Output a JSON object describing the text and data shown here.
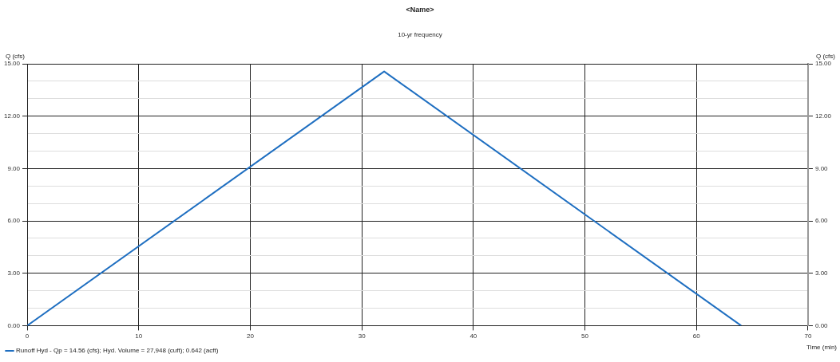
{
  "chart_data": {
    "type": "line",
    "title": "<Name>",
    "subtitle": "10-yr frequency",
    "xlabel": "Time (min)",
    "ylabel": "Q (cfs)",
    "y2label": "Q (cfs)",
    "x": [
      0,
      32,
      64
    ],
    "series": [
      {
        "name": "Runoff Hyd - Qp = 14.56 (cfs); Hyd. Volume = 27,948 (cuft); 0.642 (acft)",
        "color": "#1f6fc1",
        "values": [
          0,
          14.56,
          0
        ]
      }
    ],
    "xlim": [
      0,
      70
    ],
    "xticks": [
      0,
      10,
      20,
      30,
      40,
      50,
      60,
      70
    ],
    "ylim": [
      0,
      15
    ],
    "yticks": [
      {
        "value": 0,
        "label": "0.00"
      },
      {
        "value": 1,
        "label": null
      },
      {
        "value": 2,
        "label": null
      },
      {
        "value": 3,
        "label": "3.00"
      },
      {
        "value": 4,
        "label": null
      },
      {
        "value": 5,
        "label": null
      },
      {
        "value": 6,
        "label": "6.00"
      },
      {
        "value": 7,
        "label": null
      },
      {
        "value": 8,
        "label": null
      },
      {
        "value": 9,
        "label": "9.00"
      },
      {
        "value": 10,
        "label": null
      },
      {
        "value": 11,
        "label": null
      },
      {
        "value": 12,
        "label": "12.00"
      },
      {
        "value": 13,
        "label": null
      },
      {
        "value": 14,
        "label": null
      },
      {
        "value": 15,
        "label": "15.00"
      }
    ],
    "y2lim": [
      0,
      15
    ],
    "y2ticks": [
      {
        "value": 0,
        "label": "0.00"
      },
      {
        "value": 1,
        "label": null
      },
      {
        "value": 2,
        "label": null
      },
      {
        "value": 3,
        "label": "3.00"
      },
      {
        "value": 4,
        "label": null
      },
      {
        "value": 5,
        "label": null
      },
      {
        "value": 6,
        "label": "6.00"
      },
      {
        "value": 7,
        "label": null
      },
      {
        "value": 8,
        "label": null
      },
      {
        "value": 9,
        "label": "9.00"
      },
      {
        "value": 10,
        "label": null
      },
      {
        "value": 11,
        "label": null
      },
      {
        "value": 12,
        "label": "12.00"
      },
      {
        "value": 13,
        "label": null
      },
      {
        "value": 14,
        "label": null
      },
      {
        "value": 15,
        "label": "15.00"
      }
    ],
    "grid": true,
    "legend": "bottom",
    "marker": "none",
    "line_style": "solid"
  }
}
